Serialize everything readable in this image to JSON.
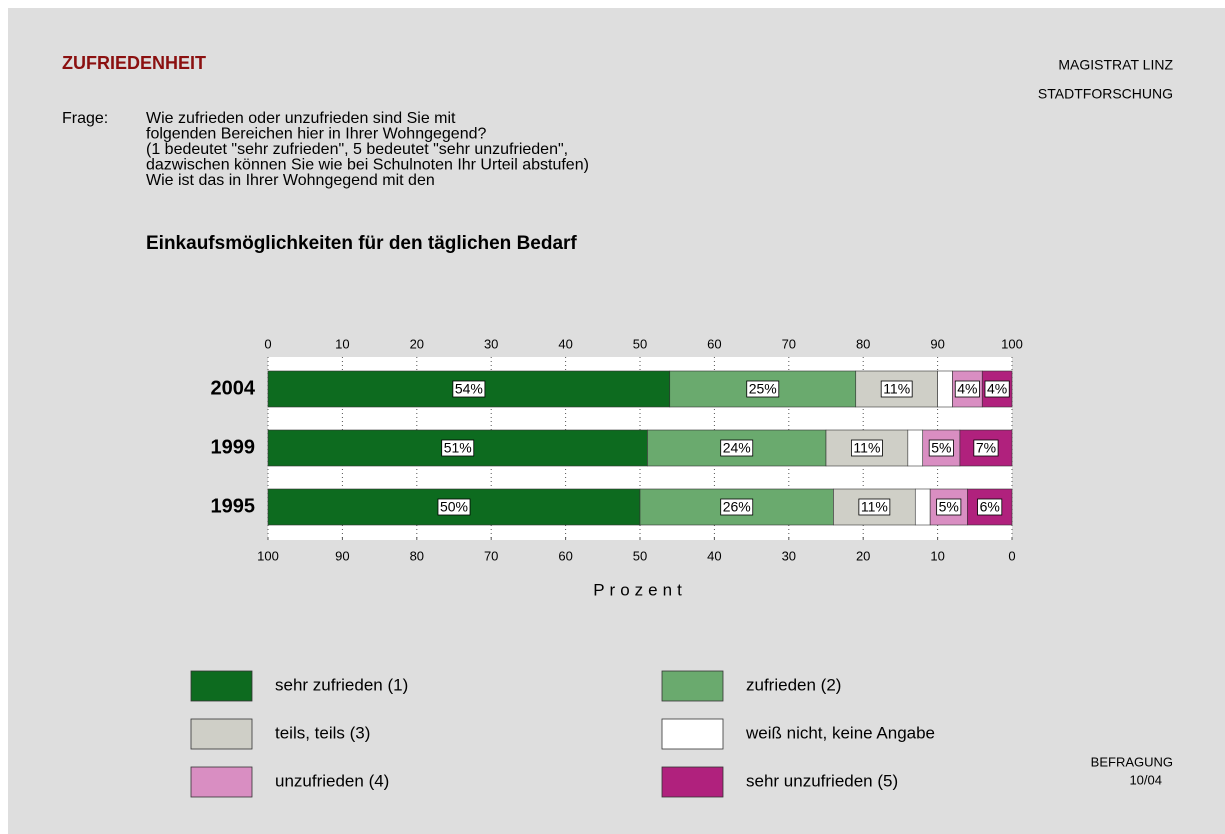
{
  "header": {
    "title": "ZUFRIEDENHEIT",
    "org1": "MAGISTRAT  LINZ",
    "org2": "STADTFORSCHUNG"
  },
  "question_label": "Frage:",
  "question": [
    "Wie zufrieden oder unzufrieden sind Sie mit",
    "folgenden Bereichen hier in Ihrer Wohngegend?",
    "(1 bedeutet \"sehr zufrieden\", 5 bedeutet \"sehr unzufrieden\",",
    "dazwischen können Sie wie bei Schulnoten Ihr Urteil abstufen)",
    "Wie ist das in Ihrer Wohngegend mit den"
  ],
  "footer": {
    "line1": "BEFRAGUNG",
    "line2": "10/04"
  },
  "chart_data": {
    "type": "stacked_bar_horizontal",
    "title": "Einkaufsmöglichkeiten für den täglichen Bedarf",
    "x_label": "Prozent",
    "categories": [
      "2004",
      "1999",
      "1995"
    ],
    "series": [
      {
        "name": "sehr zufrieden (1)",
        "color": "#0d6b1f",
        "values": [
          54,
          51,
          50
        ],
        "value_labels": [
          "54%",
          "51%",
          "50%"
        ]
      },
      {
        "name": "zufrieden (2)",
        "color": "#6aaa6e",
        "values": [
          25,
          24,
          26
        ],
        "value_labels": [
          "25%",
          "24%",
          "26%"
        ]
      },
      {
        "name": "teils, teils (3)",
        "color": "#cfcfc7",
        "values": [
          11,
          11,
          11
        ],
        "value_labels": [
          "11%",
          "11%",
          "11%"
        ]
      },
      {
        "name": "weiß nicht, keine Angabe",
        "color": "#ffffff",
        "values": [
          2,
          2,
          2
        ]
      },
      {
        "name": "unzufrieden (4)",
        "color": "#d98ec2",
        "values": [
          4,
          5,
          5
        ],
        "value_labels": [
          "4%",
          "5%",
          "5%"
        ]
      },
      {
        "name": "sehr unzufrieden (5)",
        "color": "#b0217d",
        "values": [
          4,
          7,
          6
        ],
        "value_labels": [
          "4%",
          "7%",
          "6%"
        ]
      }
    ],
    "xlim": [
      0,
      100
    ],
    "xticks": [
      0,
      10,
      20,
      30,
      40,
      50,
      60,
      70,
      80,
      90,
      100
    ],
    "x2lim": [
      100,
      0
    ],
    "x2ticks": [
      100,
      90,
      80,
      70,
      60,
      50,
      40,
      30,
      20,
      10,
      0
    ],
    "grid": true
  }
}
